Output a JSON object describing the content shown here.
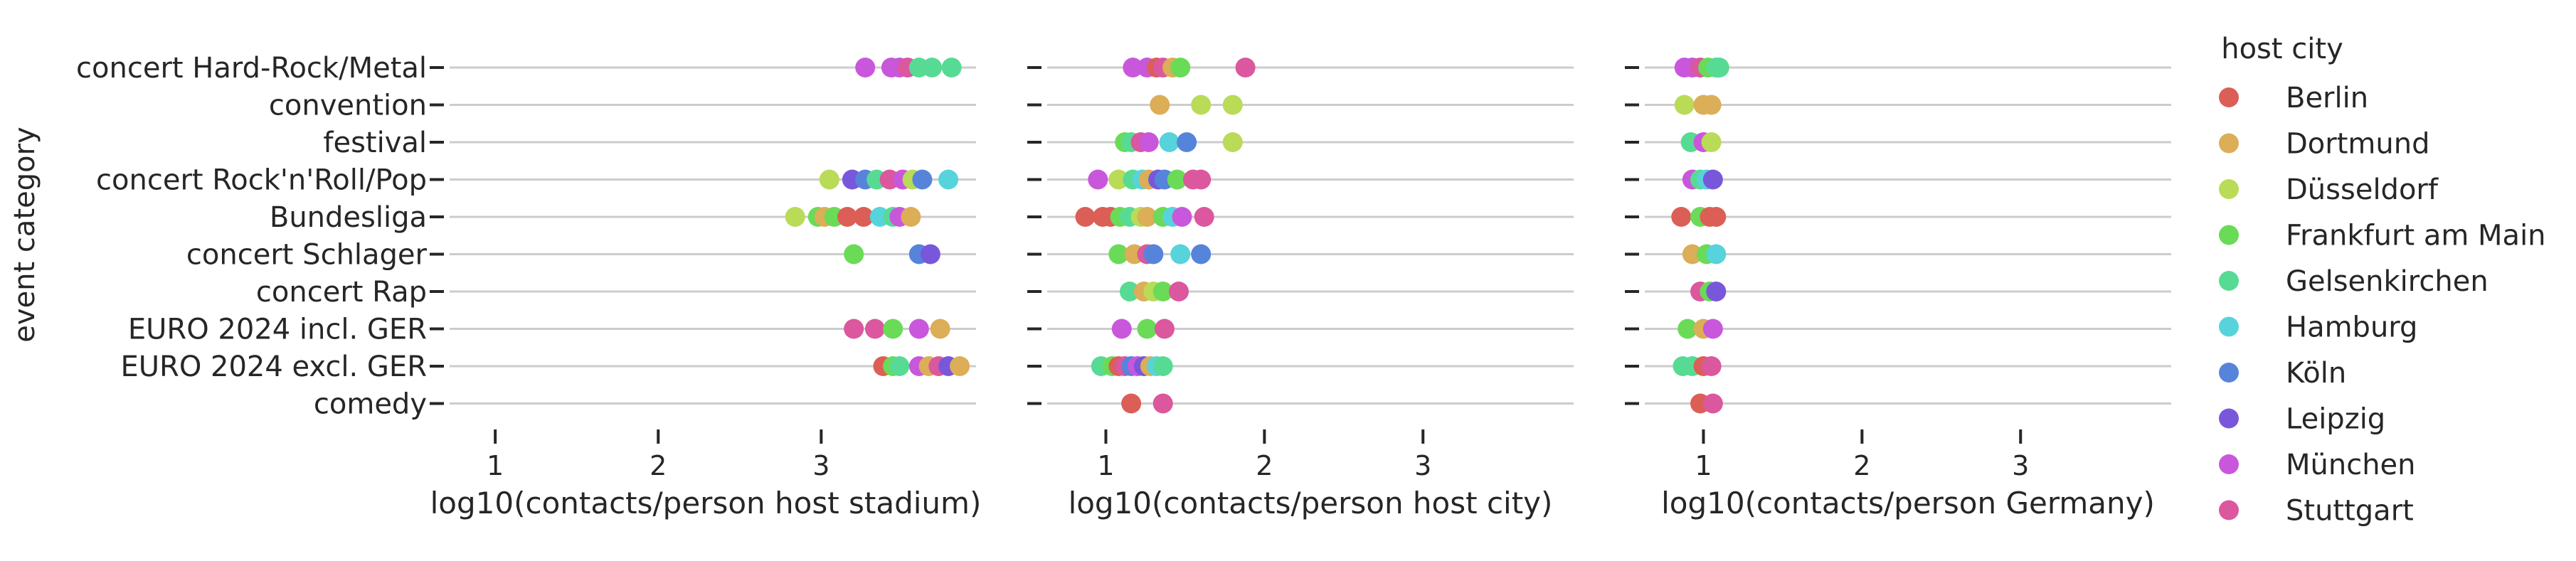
{
  "categories": [
    "concert Hard-Rock/Metal",
    "convention",
    "festival",
    "concert Rock'n'Roll/Pop",
    "Bundesliga",
    "concert Schlager",
    "concert Rap",
    "EURO 2024 incl. GER",
    "EURO 2024 excl. GER",
    "comedy"
  ],
  "ylabel": "event category",
  "legend": {
    "title": "host city",
    "cities": [
      "Berlin",
      "Dortmund",
      "Düsseldorf",
      "Frankfurt am Main",
      "Gelsenkirchen",
      "Hamburg",
      "Köln",
      "Leipzig",
      "München",
      "Stuttgart"
    ],
    "colors": [
      "#db5f57",
      "#dbae57",
      "#b9db57",
      "#69db57",
      "#57db94",
      "#57d3db",
      "#5784db",
      "#7957db",
      "#c957db",
      "#db579e"
    ]
  },
  "chart_data": [
    {
      "type": "scatter",
      "xlabel": "log10(contacts/person host stadium)",
      "xticks": [
        1,
        2,
        3
      ],
      "xlim": [
        0.72,
        3.95
      ],
      "points": {
        "concert Hard-Rock/Metal": [
          [
            3.27,
            "München"
          ],
          [
            3.43,
            "München"
          ],
          [
            3.48,
            "München"
          ],
          [
            3.53,
            "Stuttgart"
          ],
          [
            3.6,
            "Gelsenkirchen"
          ],
          [
            3.68,
            "Gelsenkirchen"
          ],
          [
            3.8,
            "Gelsenkirchen"
          ]
        ],
        "convention": [],
        "festival": [],
        "concert Rock'n'Roll/Pop": [
          [
            3.05,
            "Düsseldorf"
          ],
          [
            3.19,
            "Leipzig"
          ],
          [
            3.27,
            "Köln"
          ],
          [
            3.34,
            "Gelsenkirchen"
          ],
          [
            3.42,
            "Stuttgart"
          ],
          [
            3.5,
            "München"
          ],
          [
            3.56,
            "Düsseldorf"
          ],
          [
            3.62,
            "Köln"
          ],
          [
            3.78,
            "Hamburg"
          ]
        ],
        "Bundesliga": [
          [
            2.84,
            "Düsseldorf"
          ],
          [
            2.98,
            "Frankfurt am Main"
          ],
          [
            3.02,
            "Dortmund"
          ],
          [
            3.08,
            "Frankfurt am Main"
          ],
          [
            3.16,
            "Berlin"
          ],
          [
            3.26,
            "Berlin"
          ],
          [
            3.36,
            "Hamburg"
          ],
          [
            3.44,
            "Gelsenkirchen"
          ],
          [
            3.48,
            "München"
          ],
          [
            3.55,
            "Dortmund"
          ]
        ],
        "concert Schlager": [
          [
            3.2,
            "Frankfurt am Main"
          ],
          [
            3.6,
            "Köln"
          ],
          [
            3.67,
            "Leipzig"
          ]
        ],
        "concert Rap": [],
        "EURO 2024 incl. GER": [
          [
            3.2,
            "Stuttgart"
          ],
          [
            3.33,
            "Stuttgart"
          ],
          [
            3.44,
            "Frankfurt am Main"
          ],
          [
            3.6,
            "München"
          ],
          [
            3.73,
            "Dortmund"
          ]
        ],
        "EURO 2024 excl. GER": [
          [
            3.38,
            "Berlin"
          ],
          [
            3.44,
            "Frankfurt am Main"
          ],
          [
            3.48,
            "Gelsenkirchen"
          ],
          [
            3.6,
            "München"
          ],
          [
            3.66,
            "Dortmund"
          ],
          [
            3.72,
            "Stuttgart"
          ],
          [
            3.78,
            "Leipzig"
          ],
          [
            3.85,
            "Dortmund"
          ]
        ],
        "comedy": []
      }
    },
    {
      "type": "scatter",
      "xlabel": "log10(contacts/person host city)",
      "xticks": [
        1,
        2,
        3
      ],
      "xlim": [
        0.63,
        3.95
      ],
      "points": {
        "concert Hard-Rock/Metal": [
          [
            1.17,
            "München"
          ],
          [
            1.26,
            "München"
          ],
          [
            1.32,
            "Berlin"
          ],
          [
            1.36,
            "Stuttgart"
          ],
          [
            1.42,
            "Dortmund"
          ],
          [
            1.47,
            "Frankfurt am Main"
          ],
          [
            1.88,
            "Stuttgart"
          ]
        ],
        "convention": [
          [
            1.34,
            "Dortmund"
          ],
          [
            1.6,
            "Düsseldorf"
          ],
          [
            1.8,
            "Düsseldorf"
          ]
        ],
        "festival": [
          [
            1.12,
            "Frankfurt am Main"
          ],
          [
            1.16,
            "Gelsenkirchen"
          ],
          [
            1.22,
            "Stuttgart"
          ],
          [
            1.27,
            "München"
          ],
          [
            1.4,
            "Hamburg"
          ],
          [
            1.51,
            "Köln"
          ],
          [
            1.8,
            "Düsseldorf"
          ]
        ],
        "concert Rock'n'Roll/Pop": [
          [
            0.95,
            "München"
          ],
          [
            1.08,
            "Düsseldorf"
          ],
          [
            1.17,
            "Gelsenkirchen"
          ],
          [
            1.23,
            "Hamburg"
          ],
          [
            1.27,
            "Dortmund"
          ],
          [
            1.33,
            "Leipzig"
          ],
          [
            1.37,
            "Köln"
          ],
          [
            1.45,
            "Frankfurt am Main"
          ],
          [
            1.55,
            "Stuttgart"
          ],
          [
            1.6,
            "Stuttgart"
          ]
        ],
        "Bundesliga": [
          [
            0.87,
            "Berlin"
          ],
          [
            0.98,
            "Berlin"
          ],
          [
            1.03,
            "Berlin"
          ],
          [
            1.09,
            "Frankfurt am Main"
          ],
          [
            1.15,
            "Gelsenkirchen"
          ],
          [
            1.22,
            "Düsseldorf"
          ],
          [
            1.26,
            "Dortmund"
          ],
          [
            1.36,
            "Frankfurt am Main"
          ],
          [
            1.42,
            "Hamburg"
          ],
          [
            1.48,
            "München"
          ],
          [
            1.62,
            "Stuttgart"
          ]
        ],
        "concert Schlager": [
          [
            1.08,
            "Frankfurt am Main"
          ],
          [
            1.18,
            "Dortmund"
          ],
          [
            1.26,
            "Stuttgart"
          ],
          [
            1.3,
            "Köln"
          ],
          [
            1.47,
            "Hamburg"
          ],
          [
            1.6,
            "Köln"
          ]
        ],
        "concert Rap": [
          [
            1.15,
            "Gelsenkirchen"
          ],
          [
            1.24,
            "Dortmund"
          ],
          [
            1.3,
            "Düsseldorf"
          ],
          [
            1.36,
            "Frankfurt am Main"
          ],
          [
            1.46,
            "Stuttgart"
          ]
        ],
        "EURO 2024 incl. GER": [
          [
            1.1,
            "München"
          ],
          [
            1.26,
            "Frankfurt am Main"
          ],
          [
            1.37,
            "Stuttgart"
          ]
        ],
        "EURO 2024 excl. GER": [
          [
            0.97,
            "Gelsenkirchen"
          ],
          [
            1.04,
            "Frankfurt am Main"
          ],
          [
            1.08,
            "Berlin"
          ],
          [
            1.12,
            "Stuttgart"
          ],
          [
            1.16,
            "Köln"
          ],
          [
            1.2,
            "München"
          ],
          [
            1.24,
            "Leipzig"
          ],
          [
            1.28,
            "Dortmund"
          ],
          [
            1.32,
            "Hamburg"
          ],
          [
            1.36,
            "Gelsenkirchen"
          ]
        ],
        "comedy": [
          [
            1.16,
            "Berlin"
          ],
          [
            1.36,
            "Stuttgart"
          ]
        ]
      }
    },
    {
      "type": "scatter",
      "xlabel": "log10(contacts/person Germany)",
      "xticks": [
        1,
        2,
        3
      ],
      "xlim": [
        0.63,
        3.95
      ],
      "points": {
        "concert Hard-Rock/Metal": [
          [
            0.88,
            "München"
          ],
          [
            0.93,
            "München"
          ],
          [
            0.98,
            "Stuttgart"
          ],
          [
            1.03,
            "Frankfurt am Main"
          ],
          [
            1.08,
            "Gelsenkirchen"
          ],
          [
            1.1,
            "Gelsenkirchen"
          ]
        ],
        "convention": [
          [
            0.88,
            "Düsseldorf"
          ],
          [
            1.0,
            "Dortmund"
          ],
          [
            1.05,
            "Dortmund"
          ]
        ],
        "festival": [
          [
            0.92,
            "Gelsenkirchen"
          ],
          [
            1.0,
            "München"
          ],
          [
            1.05,
            "Düsseldorf"
          ]
        ],
        "concert Rock'n'Roll/Pop": [
          [
            0.93,
            "München"
          ],
          [
            0.98,
            "Gelsenkirchen"
          ],
          [
            1.02,
            "Hamburg"
          ],
          [
            1.06,
            "Leipzig"
          ]
        ],
        "Bundesliga": [
          [
            0.86,
            "Berlin"
          ],
          [
            0.98,
            "Frankfurt am Main"
          ],
          [
            1.04,
            "Berlin"
          ],
          [
            1.08,
            "Berlin"
          ]
        ],
        "concert Schlager": [
          [
            0.93,
            "Dortmund"
          ],
          [
            1.02,
            "Frankfurt am Main"
          ],
          [
            1.08,
            "Hamburg"
          ]
        ],
        "concert Rap": [
          [
            0.98,
            "Stuttgart"
          ],
          [
            1.04,
            "Frankfurt am Main"
          ],
          [
            1.08,
            "Leipzig"
          ]
        ],
        "EURO 2024 incl. GER": [
          [
            0.9,
            "Frankfurt am Main"
          ],
          [
            1.0,
            "Dortmund"
          ],
          [
            1.06,
            "München"
          ]
        ],
        "EURO 2024 excl. GER": [
          [
            0.87,
            "Gelsenkirchen"
          ],
          [
            0.93,
            "Gelsenkirchen"
          ],
          [
            1.0,
            "Berlin"
          ],
          [
            1.05,
            "Stuttgart"
          ]
        ],
        "comedy": [
          [
            0.98,
            "Berlin"
          ],
          [
            1.06,
            "Stuttgart"
          ]
        ]
      }
    }
  ]
}
